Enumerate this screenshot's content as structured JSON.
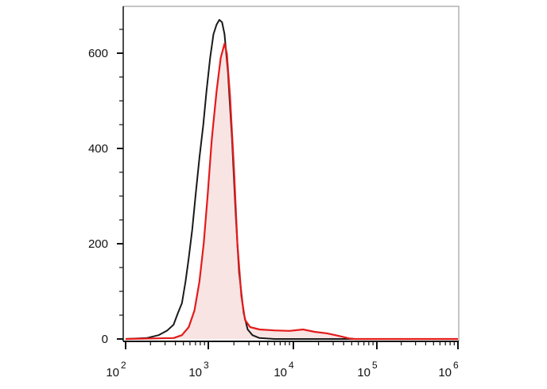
{
  "chart_data": {
    "type": "area",
    "title": "",
    "xlabel": "",
    "ylabel": "",
    "xscale": "log",
    "xlim": [
      100,
      1000000
    ],
    "ylim": [
      0,
      700
    ],
    "grid": false,
    "legend": "none",
    "x_ticks": [
      {
        "base": "10",
        "exp": "2",
        "value": 100
      },
      {
        "base": "10",
        "exp": "3",
        "value": 1000
      },
      {
        "base": "10",
        "exp": "4",
        "value": 10000
      },
      {
        "base": "10",
        "exp": "5",
        "value": 100000
      },
      {
        "base": "10",
        "exp": "6",
        "value": 1000000
      }
    ],
    "y_ticks": [
      {
        "label": "0",
        "value": 0
      },
      {
        "label": "200",
        "value": 200
      },
      {
        "label": "400",
        "value": 400
      },
      {
        "label": "600",
        "value": 600
      }
    ],
    "series": [
      {
        "color": "#1a1a1a",
        "fill": "none",
        "points": [
          [
            100,
            0
          ],
          [
            180,
            2
          ],
          [
            250,
            8
          ],
          [
            320,
            18
          ],
          [
            380,
            30
          ],
          [
            430,
            55
          ],
          [
            480,
            75
          ],
          [
            530,
            120
          ],
          [
            580,
            170
          ],
          [
            640,
            230
          ],
          [
            700,
            300
          ],
          [
            780,
            380
          ],
          [
            870,
            450
          ],
          [
            950,
            520
          ],
          [
            1050,
            590
          ],
          [
            1150,
            640
          ],
          [
            1250,
            660
          ],
          [
            1350,
            670
          ],
          [
            1450,
            665
          ],
          [
            1550,
            640
          ],
          [
            1700,
            560
          ],
          [
            1900,
            420
          ],
          [
            2100,
            260
          ],
          [
            2300,
            140
          ],
          [
            2600,
            55
          ],
          [
            2900,
            20
          ],
          [
            3300,
            8
          ],
          [
            4000,
            2
          ],
          [
            6000,
            0
          ],
          [
            1000000,
            0
          ]
        ]
      },
      {
        "color": "#e31b1b",
        "fill": "#f9e4e4",
        "points": [
          [
            100,
            0
          ],
          [
            380,
            2
          ],
          [
            480,
            8
          ],
          [
            580,
            25
          ],
          [
            680,
            60
          ],
          [
            780,
            120
          ],
          [
            880,
            200
          ],
          [
            980,
            300
          ],
          [
            1100,
            420
          ],
          [
            1250,
            520
          ],
          [
            1400,
            590
          ],
          [
            1550,
            620
          ],
          [
            1650,
            600
          ],
          [
            1800,
            510
          ],
          [
            2000,
            360
          ],
          [
            2200,
            200
          ],
          [
            2450,
            90
          ],
          [
            2700,
            40
          ],
          [
            3100,
            25
          ],
          [
            4000,
            20
          ],
          [
            6000,
            18
          ],
          [
            9000,
            17
          ],
          [
            13000,
            20
          ],
          [
            18000,
            15
          ],
          [
            25000,
            12
          ],
          [
            32000,
            8
          ],
          [
            40000,
            4
          ],
          [
            47000,
            1
          ],
          [
            55000,
            0
          ],
          [
            1000000,
            0
          ]
        ]
      }
    ]
  }
}
